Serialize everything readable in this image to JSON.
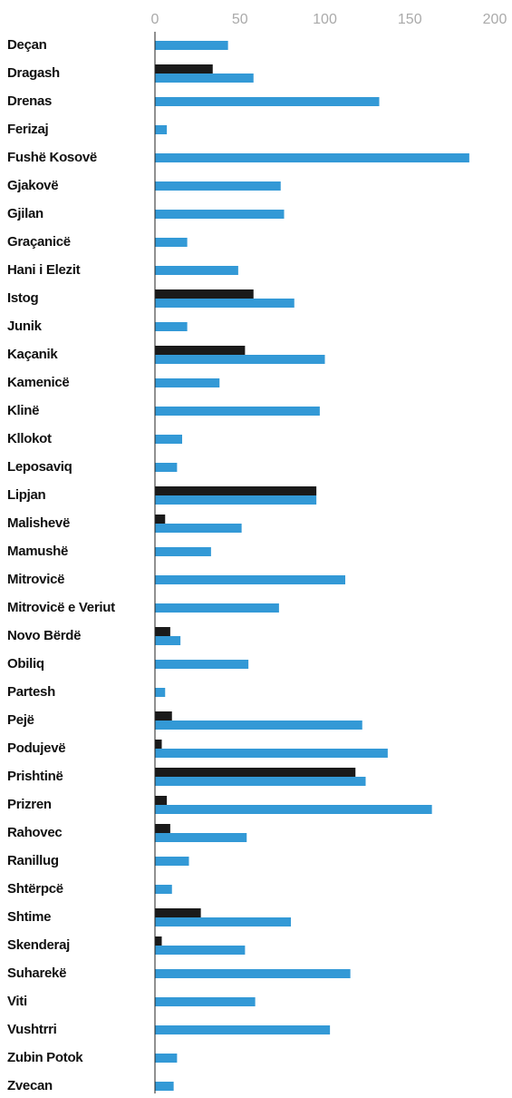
{
  "chart_data": {
    "type": "barh",
    "categories": [
      "Deçan",
      "Dragash",
      "Drenas",
      "Ferizaj",
      "Fushë Kosovë",
      "Gjakovë",
      "Gjilan",
      "Graçanicë",
      "Hani i Elezit",
      "Istog",
      "Junik",
      "Kaçanik",
      "Kamenicë",
      "Klinë",
      "Kllokot",
      "Leposaviq",
      "Lipjan",
      "Malishevë",
      "Mamushë",
      "Mitrovicë",
      "Mitrovicë e Veriut",
      "Novo Bërdë",
      "Obiliq",
      "Partesh",
      "Pejë",
      "Podujevë",
      "Prishtinë",
      "Prizren",
      "Rahovec",
      "Ranillug",
      "Shtërpcë",
      "Shtime",
      "Skenderaj",
      "Suharekë",
      "Viti",
      "Vushtrri",
      "Zubin Potok",
      "Zvecan"
    ],
    "series": [
      {
        "color": "#1a1a1a",
        "values": [
          null,
          34,
          null,
          null,
          null,
          null,
          null,
          null,
          null,
          58,
          null,
          53,
          null,
          null,
          null,
          null,
          95,
          6,
          null,
          null,
          null,
          9,
          null,
          null,
          10,
          4,
          118,
          7,
          9,
          null,
          null,
          27,
          4,
          null,
          null,
          null,
          null,
          null
        ]
      },
      {
        "color": "#3399d6",
        "values": [
          43,
          58,
          132,
          7,
          185,
          74,
          76,
          19,
          49,
          82,
          19,
          100,
          38,
          97,
          16,
          13,
          95,
          51,
          33,
          112,
          73,
          15,
          55,
          6,
          122,
          137,
          124,
          163,
          54,
          20,
          10,
          80,
          53,
          115,
          59,
          103,
          13,
          11
        ]
      }
    ],
    "xlim": [
      0,
      200
    ],
    "xticks": [
      0,
      50,
      100,
      150,
      200
    ]
  }
}
